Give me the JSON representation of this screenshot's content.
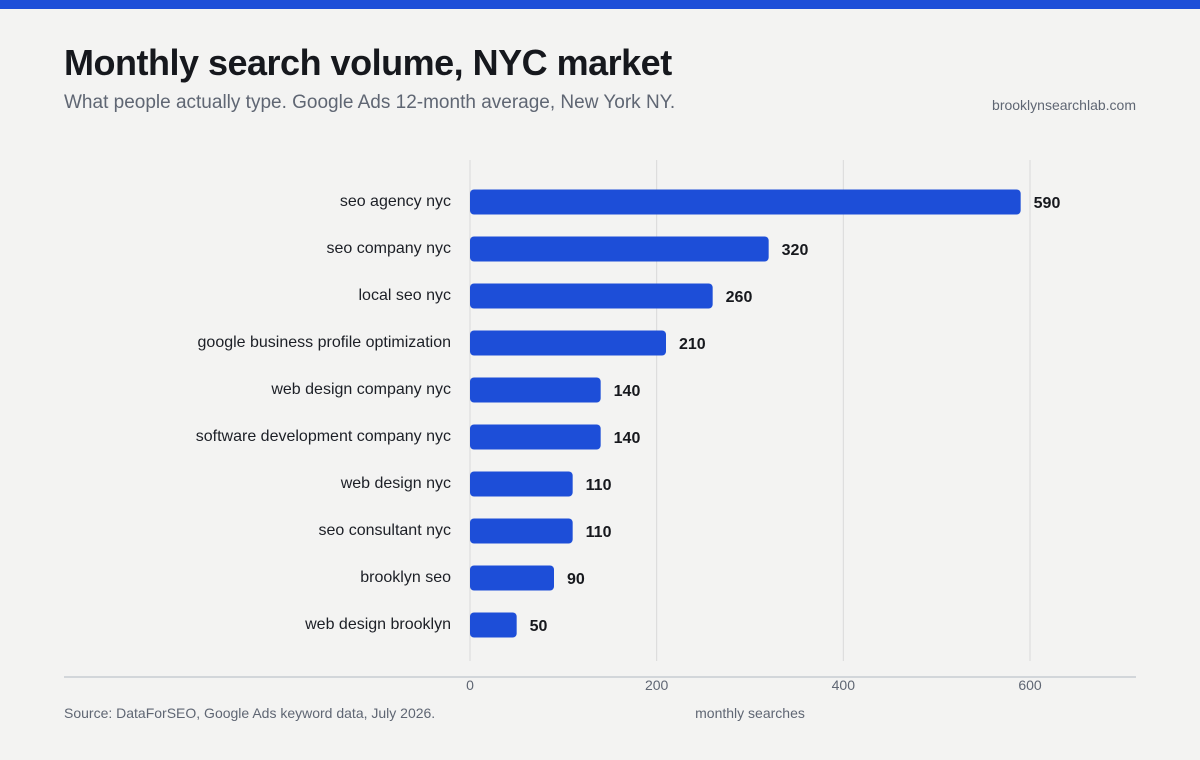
{
  "header": {
    "title": "Monthly search volume, NYC market",
    "subtitle": "What people actually type. Google Ads 12-month average, New York NY.",
    "site": "brooklynsearchlab.com"
  },
  "footer": {
    "source": "Source: DataForSEO, Google Ads keyword data, July 2026."
  },
  "colors": {
    "accent": "#1d4ed8",
    "bar": "#1d4ed8",
    "background": "#f3f3f2",
    "grid": "#d9d9d9"
  },
  "chart_data": {
    "type": "bar",
    "orientation": "horizontal",
    "categories": [
      "seo agency nyc",
      "seo company nyc",
      "local seo nyc",
      "google business profile optimization",
      "web design company nyc",
      "software development company nyc",
      "web design nyc",
      "seo consultant nyc",
      "brooklyn seo",
      "web design brooklyn"
    ],
    "values": [
      590,
      320,
      260,
      210,
      140,
      140,
      110,
      110,
      90,
      50
    ],
    "xlabel": "monthly searches",
    "ylabel": "",
    "xlim": [
      0,
      700
    ],
    "xticks": [
      0,
      200,
      400,
      600
    ],
    "grid": true,
    "data_labels": true
  }
}
